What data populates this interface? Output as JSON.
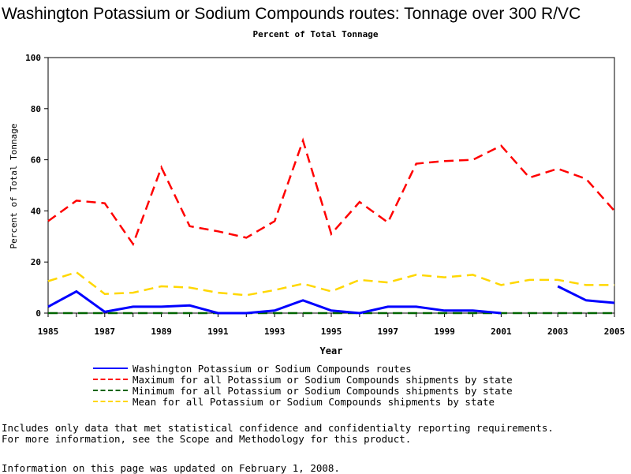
{
  "chart_data": {
    "type": "line",
    "title": "Washington Potassium or Sodium Compounds routes: Tonnage over 300 R/VC",
    "subtitle": "Percent of Total Tonnage",
    "xlabel": "Year",
    "ylabel": "Percent of Total Tonnage",
    "xlim": [
      1985,
      2005
    ],
    "ylim": [
      0,
      100
    ],
    "x_ticks": [
      "1985",
      "1987",
      "1989",
      "1991",
      "1993",
      "1995",
      "1997",
      "1999",
      "2001",
      "2003",
      "2005"
    ],
    "y_ticks": [
      "0",
      "20",
      "40",
      "60",
      "80",
      "100"
    ],
    "grid": false,
    "legend_position": "bottom",
    "series": [
      {
        "name": "Washington Potassium or Sodium Compounds routes",
        "color": "#0000ff",
        "dash": "solid",
        "x": [
          1985,
          1986,
          1987,
          1988,
          1989,
          1990,
          1991,
          1992,
          1993,
          1994,
          1995,
          1996,
          1997,
          1998,
          1999,
          2000,
          2001,
          2002,
          2003,
          2004,
          2005
        ],
        "values": [
          2.5,
          8.5,
          0.5,
          2.5,
          2.5,
          3,
          0,
          0,
          1,
          5,
          1,
          0,
          2.5,
          2.5,
          1,
          1,
          0,
          null,
          10.5,
          5,
          4
        ]
      },
      {
        "name": "Maximum for all Potassium or Sodium Compounds shipments by state",
        "color": "#ff0000",
        "dash": "dashed",
        "x": [
          1985,
          1986,
          1987,
          1988,
          1989,
          1990,
          1991,
          1992,
          1993,
          1994,
          1995,
          1996,
          1997,
          1998,
          1999,
          2000,
          2001,
          2002,
          2003,
          2004,
          2005
        ],
        "values": [
          36,
          44,
          43,
          27,
          57,
          34,
          32,
          29.5,
          36,
          67.5,
          31,
          43.5,
          35.5,
          58.5,
          59.5,
          60,
          65.5,
          53,
          56.5,
          52.5,
          40
        ]
      },
      {
        "name": "Minimum for all Potassium or Sodium Compounds shipments by state",
        "color": "#006400",
        "dash": "dashed",
        "x": [
          1985,
          1986,
          1987,
          1988,
          1989,
          1990,
          1991,
          1992,
          1993,
          1994,
          1995,
          1996,
          1997,
          1998,
          1999,
          2000,
          2001,
          2002,
          2003,
          2004,
          2005
        ],
        "values": [
          0,
          0,
          0,
          0,
          0,
          0,
          0,
          0,
          0,
          0,
          0,
          0,
          0,
          0,
          0,
          0,
          0,
          0,
          0,
          0,
          0
        ]
      },
      {
        "name": "Mean for all Potassium or Sodium Compounds shipments by state",
        "color": "#ffd700",
        "dash": "dashed",
        "x": [
          1985,
          1986,
          1987,
          1988,
          1989,
          1990,
          1991,
          1992,
          1993,
          1994,
          1995,
          1996,
          1997,
          1998,
          1999,
          2000,
          2001,
          2002,
          2003,
          2004,
          2005
        ],
        "values": [
          12.5,
          16,
          7.5,
          8,
          10.5,
          10,
          8,
          7,
          9,
          11.5,
          8.5,
          13,
          12,
          15,
          14,
          15,
          11,
          13,
          13,
          11,
          11
        ]
      }
    ]
  },
  "notes": {
    "line1": "Includes only data that met statistical confidence and confidentialty reporting requirements.",
    "line2": "For more information, see the Scope and Methodology for this product.",
    "updated": "Information on this page was updated on February 1, 2008."
  }
}
